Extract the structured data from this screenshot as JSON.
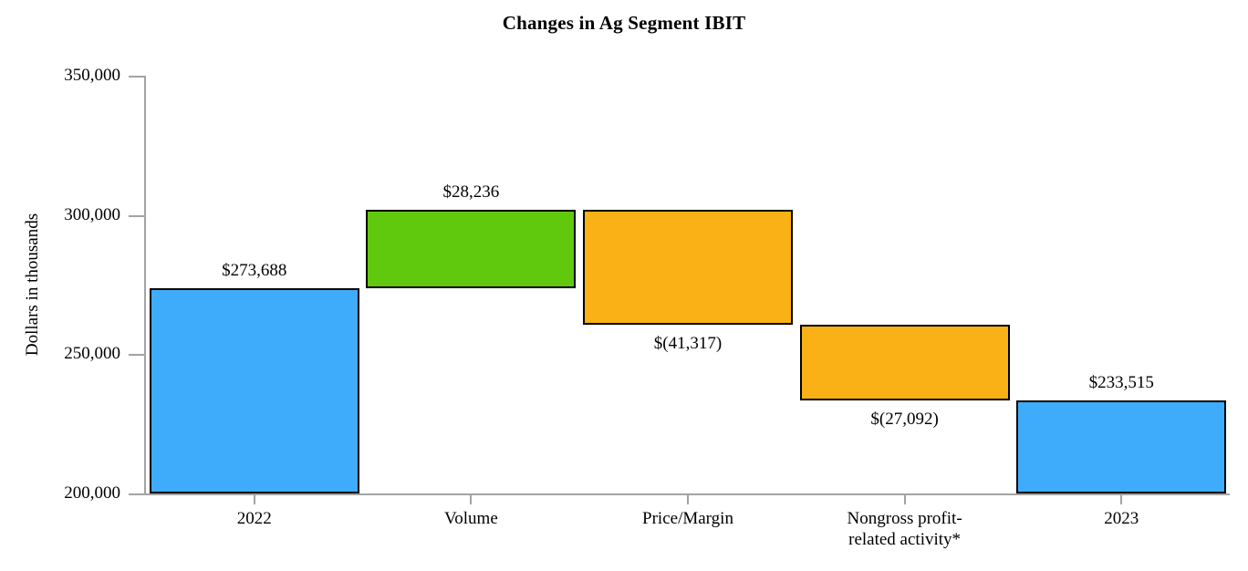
{
  "page": {
    "title": "Changes in Ag Segment IBIT"
  },
  "chart_data": {
    "type": "bar",
    "subtype": "waterfall",
    "title": "Changes in Ag Segment IBIT",
    "xlabel": "",
    "ylabel": "Dollars in thousands",
    "ylim": [
      200000,
      350000
    ],
    "ytick_step": 50000,
    "grid": false,
    "legend": null,
    "axis_color": "#A3A3A3",
    "bar_border_color": "#000000",
    "y_ticks": [
      {
        "value": 350000,
        "label": "350,000"
      },
      {
        "value": 300000,
        "label": "300,000"
      },
      {
        "value": 250000,
        "label": "250,000"
      },
      {
        "value": 200000,
        "label": "200,000"
      }
    ],
    "categories": [
      "2022",
      "Volume",
      "Price/Margin",
      "Nongross profit-\nrelated activity*",
      "2023"
    ],
    "bars": [
      {
        "category": "2022",
        "kind": "total",
        "start": 200000,
        "end": 273688,
        "value": 273688,
        "label": "$273,688",
        "label_position": "above",
        "color": "#3EACFA"
      },
      {
        "category": "Volume",
        "kind": "increase",
        "start": 273688,
        "end": 301924,
        "value": 28236,
        "label": "$28,236",
        "label_position": "above",
        "color": "#61C90D"
      },
      {
        "category": "Price/Margin",
        "kind": "decrease",
        "start": 301924,
        "end": 260607,
        "value": -41317,
        "label": "$(41,317)",
        "label_position": "below",
        "color": "#FAB116"
      },
      {
        "category": "Nongross profit-related activity*",
        "kind": "decrease",
        "start": 260607,
        "end": 233515,
        "value": -27092,
        "label": "$(27,092)",
        "label_position": "below",
        "color": "#FAB116"
      },
      {
        "category": "2023",
        "kind": "total",
        "start": 200000,
        "end": 233515,
        "value": 233515,
        "label": "$233,515",
        "label_position": "above",
        "color": "#3EACFA"
      }
    ]
  }
}
